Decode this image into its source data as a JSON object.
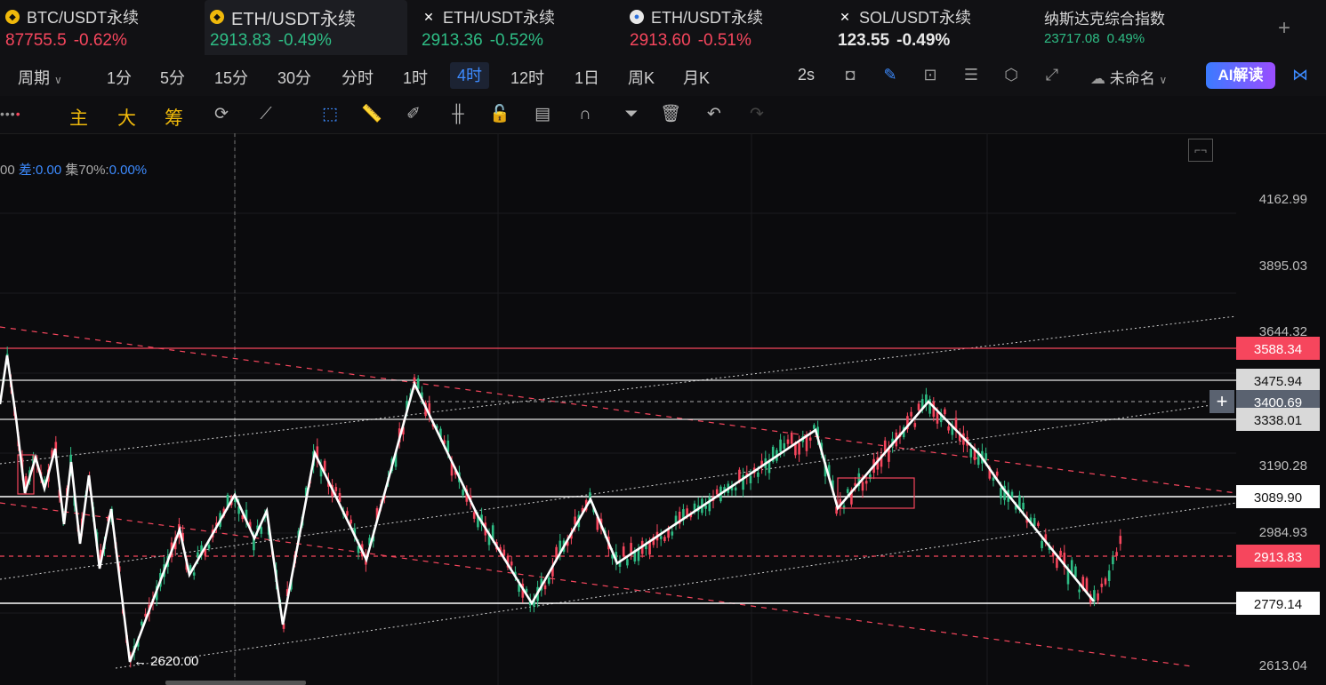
{
  "tabs": [
    {
      "name": "BTC/USDT永续",
      "icon": "bnb-coin-icon",
      "price": "87755.5",
      "change": "-0.62%",
      "dir": "down",
      "active": false
    },
    {
      "name": "ETH/USDT永续",
      "icon": "bnb-coin-icon",
      "price": "2913.83",
      "change": "-0.49%",
      "dir": "up",
      "active": true
    },
    {
      "name": "ETH/USDT永续",
      "icon": "x-exchange-icon",
      "price": "2913.36",
      "change": "-0.52%",
      "dir": "up",
      "active": false
    },
    {
      "name": "ETH/USDT永续",
      "icon": "drop-exchange-icon",
      "price": "2913.60",
      "change": "-0.51%",
      "dir": "down",
      "active": false
    },
    {
      "name": "SOL/USDT永续",
      "icon": "x-exchange-icon",
      "price": "123.55",
      "change": "-0.49%",
      "dir": "neutral",
      "active": false
    },
    {
      "name": "纳斯达克综合指数",
      "icon": "",
      "price": "23717.08",
      "change": "0.49%",
      "dir": "up",
      "active": false
    }
  ],
  "timeframes": {
    "period_label": "周期",
    "items": [
      "1分",
      "5分",
      "15分",
      "30分",
      "分时",
      "1时",
      "4时",
      "12时",
      "1日",
      "周K",
      "月K"
    ],
    "active": "4时",
    "refresh": "2s"
  },
  "layout_name": "未命名",
  "ai_button": "AI解读",
  "indicators": [
    "主",
    "大",
    "筹"
  ],
  "info": {
    "prefix": "00",
    "diff_label": "差:",
    "diff_value": "0.00",
    "ji_label": "集70%:",
    "ji_value": "0.00%"
  },
  "price_axis": [
    "4162.99",
    "3895.03",
    "3644.32",
    "3190.28",
    "2984.93",
    "2613.04"
  ],
  "level_labels": [
    {
      "value": "3588.34",
      "color": "#f6465d",
      "text": "#ffffff"
    },
    {
      "value": "3475.94",
      "color": "#d9d9d9",
      "text": "#111111"
    },
    {
      "value": "3400.69",
      "color": "#5a6270",
      "text": "#ffffff"
    },
    {
      "value": "3338.01",
      "color": "#d9d9d9",
      "text": "#111111"
    },
    {
      "value": "3089.90",
      "color": "#ffffff",
      "text": "#111111"
    },
    {
      "value": "2913.83",
      "color": "#f6465d",
      "text": "#ffffff"
    },
    {
      "value": "2779.14",
      "color": "#ffffff",
      "text": "#111111"
    }
  ],
  "low_marker": "← 2620.00",
  "colors": {
    "up": "#2ebd85",
    "down": "#f6465d",
    "accent": "#3d8bff"
  }
}
